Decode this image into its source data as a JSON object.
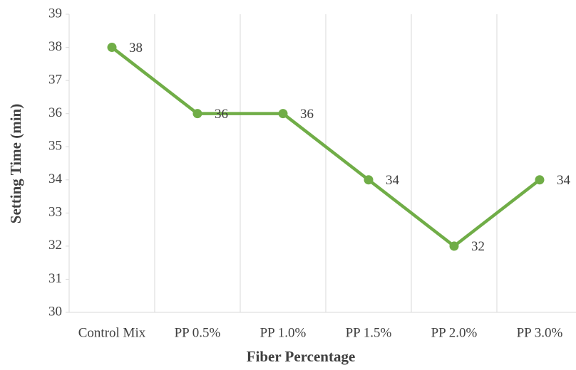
{
  "chart_data": {
    "type": "line",
    "x_label": "Fiber Percentage",
    "y_label": "Setting Time (min)",
    "categories": [
      "Control Mix",
      "PP 0.5%",
      "PP 1.0%",
      "PP 1.5%",
      "PP 2.0%",
      "PP 3.0%"
    ],
    "series": [
      {
        "name": "Setting Time",
        "color": "#70ad47",
        "values": [
          38,
          36,
          36,
          34,
          32,
          34
        ]
      }
    ],
    "ylim": [
      30,
      39
    ],
    "yticks": [
      30,
      31,
      32,
      33,
      34,
      35,
      36,
      37,
      38,
      39
    ],
    "data_labels": true
  }
}
